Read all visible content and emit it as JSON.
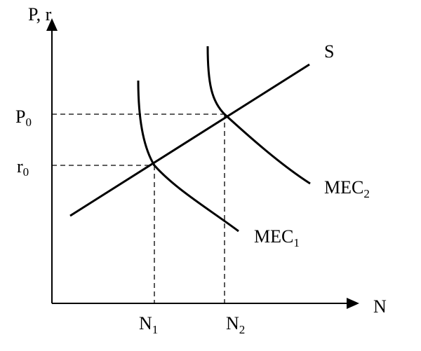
{
  "axes": {
    "y_label": "P, r",
    "x_label": "N"
  },
  "curves": {
    "supply": "S",
    "mec_1": {
      "base": "MEC",
      "sub": "1"
    },
    "mec_2": {
      "base": "MEC",
      "sub": "2"
    }
  },
  "levels": {
    "p0": {
      "base": "P",
      "sub": "0"
    },
    "r0": {
      "base": "r",
      "sub": "0"
    }
  },
  "quantities": {
    "n1": {
      "base": "N",
      "sub": "1"
    },
    "n2": {
      "base": "N",
      "sub": "2"
    }
  },
  "colors": {
    "ink": "#000000",
    "background": "#ffffff"
  }
}
